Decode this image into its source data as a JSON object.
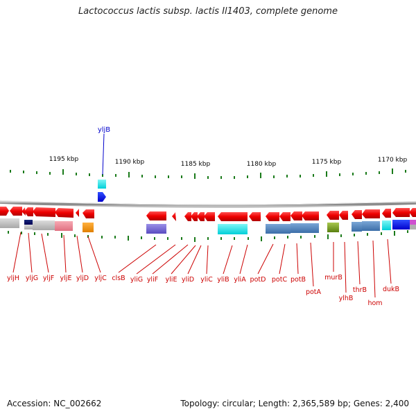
{
  "title": "Lactococcus lactis subsp. lactis Il1403, complete genome",
  "accession": "Accession: NC_002662",
  "summary": "Topology: circular; Length: 2,365,589 bp; Genes: 2,400",
  "scale_labels": [
    "1195 kbp",
    "1190 kbp",
    "1185 kbp",
    "1180 kbp",
    "1175 kbp",
    "1170 kbp"
  ],
  "top_gene": {
    "name": "yljB",
    "color": "#0000cc"
  },
  "colors": {
    "label": "#cc0000",
    "cds_strand": "#ee0000",
    "tick": "#1a7a1a",
    "backbone": "#888888"
  },
  "genes_bottom": [
    "yljH",
    "yljG",
    "yljF",
    "yljE",
    "yljD",
    "yljC",
    "clsB",
    "yliG",
    "yliF",
    "yliE",
    "yliD",
    "yliC",
    "yliB",
    "yliA",
    "potD",
    "potC",
    "potB",
    "potA",
    "murB",
    "ylhB",
    "thrB",
    "hom",
    "dukB"
  ]
}
